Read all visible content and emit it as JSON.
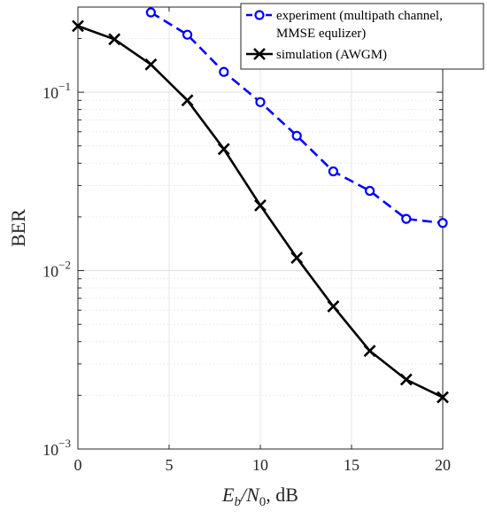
{
  "chart_data": {
    "type": "line",
    "xlabel": {
      "main": "E",
      "sub1": "b",
      "slash": "/N",
      "sub2": "0",
      "unit": ", dB"
    },
    "ylabel": "BER",
    "xlim": [
      0,
      20
    ],
    "ylim": [
      0.001,
      0.3
    ],
    "yscale": "log",
    "grid": "on",
    "x_ticks": [
      0,
      5,
      10,
      15,
      20
    ],
    "x_tick_labels": [
      "0",
      "5",
      "10",
      "15",
      "20"
    ],
    "y_ticks": [
      0.1,
      0.01,
      0.001
    ],
    "y_tick_labels": [
      {
        "base": "10",
        "exp": "−1"
      },
      {
        "base": "10",
        "exp": "−2"
      },
      {
        "base": "10",
        "exp": "−3"
      }
    ],
    "legend": {
      "placement": "top-right",
      "entries": [
        {
          "lines": [
            "experiment (multipath channel,",
            "MMSE equlizer)"
          ]
        },
        {
          "lines": [
            "simulation (AWGM)"
          ]
        }
      ]
    },
    "series": [
      {
        "x": [
          4,
          6,
          8,
          10,
          12,
          14,
          16,
          18,
          20
        ],
        "y": [
          0.28,
          0.21,
          0.13,
          0.088,
          0.057,
          0.036,
          0.028,
          0.0195,
          0.0185
        ],
        "color": "#0000ff",
        "marker": "circle",
        "linestyle": "dashed"
      },
      {
        "x": [
          0,
          2,
          4,
          6,
          8,
          10,
          12,
          14,
          16,
          18,
          20
        ],
        "y": [
          0.235,
          0.198,
          0.143,
          0.09,
          0.048,
          0.0232,
          0.0118,
          0.0063,
          0.00355,
          0.00245,
          0.00195
        ],
        "color": "#000000",
        "marker": "x",
        "linestyle": "solid"
      }
    ]
  }
}
